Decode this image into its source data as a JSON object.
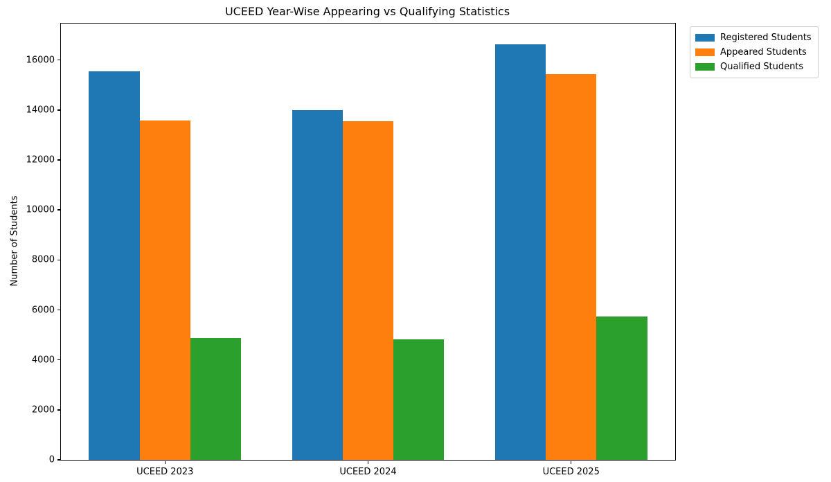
{
  "chart_data": {
    "type": "bar",
    "title": "UCEED Year-Wise Appearing vs Qualifying Statistics",
    "xlabel": "",
    "ylabel": "Number of Students",
    "categories": [
      "UCEED 2023",
      "UCEED 2024",
      "UCEED 2025"
    ],
    "series": [
      {
        "name": "Registered Students",
        "color": "#1f77b4",
        "values": [
          15550,
          13990,
          16630
        ]
      },
      {
        "name": "Appeared Students",
        "color": "#ff7f0e",
        "values": [
          13590,
          13550,
          15430
        ]
      },
      {
        "name": "Qualified Students",
        "color": "#2ca02c",
        "values": [
          4880,
          4820,
          5740
        ]
      }
    ],
    "yticks": [
      0,
      2000,
      4000,
      6000,
      8000,
      10000,
      12000,
      14000,
      16000
    ],
    "ylim": [
      0,
      17460
    ],
    "xlim": [
      -0.5125,
      2.5125
    ],
    "bar_width": 0.25,
    "grid": false,
    "legend_position": "upper-right-outside"
  }
}
